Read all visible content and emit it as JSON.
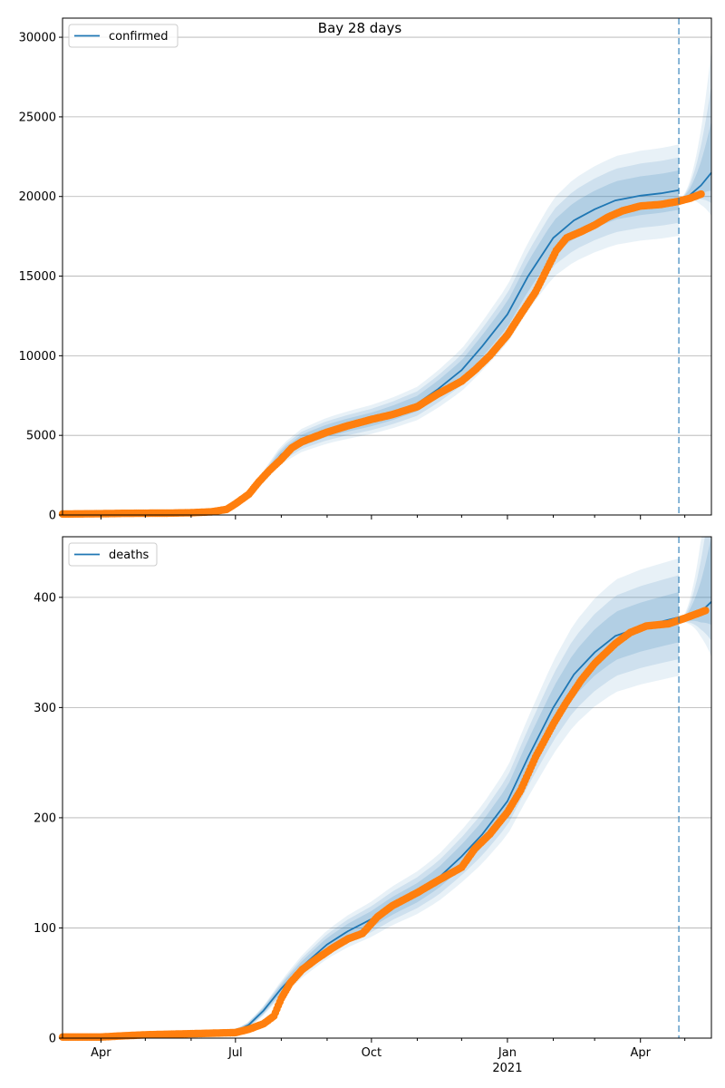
{
  "title": "Bay 28 days",
  "chart_data": [
    {
      "type": "line",
      "x_type": "date",
      "xlim": [
        "2020-03-06",
        "2021-05-19"
      ],
      "ylim": [
        0,
        31200
      ],
      "yticks": [
        0,
        5000,
        10000,
        15000,
        20000,
        25000,
        30000
      ],
      "grid": "y",
      "legend_position": "top-left",
      "legend": "confirmed",
      "forecast_start": "2021-04-27",
      "model": {
        "name": "confirmed",
        "points": [
          [
            "2020-03-06",
            60
          ],
          [
            "2020-06-01",
            110
          ],
          [
            "2020-06-25",
            300
          ],
          [
            "2020-07-01",
            650
          ],
          [
            "2020-07-10",
            1300
          ],
          [
            "2020-07-20",
            2400
          ],
          [
            "2020-08-01",
            3800
          ],
          [
            "2020-08-15",
            4700
          ],
          [
            "2020-09-01",
            5300
          ],
          [
            "2020-09-15",
            5650
          ],
          [
            "2020-10-01",
            6000
          ],
          [
            "2020-10-15",
            6400
          ],
          [
            "2020-11-01",
            7000
          ],
          [
            "2020-11-15",
            7900
          ],
          [
            "2020-12-01",
            9100
          ],
          [
            "2020-12-15",
            10600
          ],
          [
            "2021-01-01",
            12600
          ],
          [
            "2021-01-15",
            15000
          ],
          [
            "2021-02-01",
            17400
          ],
          [
            "2021-02-15",
            18500
          ],
          [
            "2021-03-01",
            19200
          ],
          [
            "2021-03-15",
            19750
          ],
          [
            "2021-04-01",
            20050
          ],
          [
            "2021-04-15",
            20200
          ],
          [
            "2021-04-27",
            20400
          ]
        ]
      },
      "projection": [
        [
          "2021-04-27",
          19700
        ],
        [
          "2021-05-04",
          20050
        ],
        [
          "2021-05-12",
          20700
        ],
        [
          "2021-05-19",
          21500
        ]
      ],
      "observed": {
        "points": [
          [
            "2020-03-06",
            60
          ],
          [
            "2020-04-01",
            80
          ],
          [
            "2020-04-15",
            100
          ],
          [
            "2020-05-01",
            110
          ],
          [
            "2020-05-15",
            115
          ],
          [
            "2020-06-01",
            140
          ],
          [
            "2020-06-15",
            200
          ],
          [
            "2020-06-25",
            350
          ],
          [
            "2020-07-01",
            700
          ],
          [
            "2020-07-10",
            1300
          ],
          [
            "2020-07-17",
            2100
          ],
          [
            "2020-07-24",
            2800
          ],
          [
            "2020-08-01",
            3500
          ],
          [
            "2020-08-08",
            4200
          ],
          [
            "2020-08-15",
            4600
          ],
          [
            "2020-09-01",
            5200
          ],
          [
            "2020-09-15",
            5600
          ],
          [
            "2020-10-01",
            6000
          ],
          [
            "2020-10-15",
            6300
          ],
          [
            "2020-11-01",
            6800
          ],
          [
            "2020-11-15",
            7600
          ],
          [
            "2020-12-01",
            8400
          ],
          [
            "2020-12-10",
            9100
          ],
          [
            "2020-12-20",
            10000
          ],
          [
            "2021-01-01",
            11300
          ],
          [
            "2021-01-10",
            12600
          ],
          [
            "2021-01-20",
            14000
          ],
          [
            "2021-01-27",
            15300
          ],
          [
            "2021-02-03",
            16600
          ],
          [
            "2021-02-10",
            17400
          ],
          [
            "2021-02-20",
            17800
          ],
          [
            "2021-03-01",
            18200
          ],
          [
            "2021-03-10",
            18700
          ],
          [
            "2021-03-20",
            19100
          ],
          [
            "2021-04-01",
            19400
          ],
          [
            "2021-04-15",
            19500
          ],
          [
            "2021-04-27",
            19700
          ],
          [
            "2021-05-05",
            19900
          ],
          [
            "2021-05-12",
            20150
          ]
        ]
      }
    },
    {
      "type": "line",
      "x_type": "date",
      "xlim": [
        "2020-03-06",
        "2021-05-19"
      ],
      "ylim": [
        0,
        455
      ],
      "yticks": [
        0,
        100,
        200,
        300,
        400
      ],
      "xticks": [
        {
          "date": "2020-04-01",
          "label": "Apr"
        },
        {
          "date": "2020-07-01",
          "label": "Jul"
        },
        {
          "date": "2020-10-01",
          "label": "Oct"
        },
        {
          "date": "2021-01-01",
          "label": "Jan",
          "year": "2021"
        },
        {
          "date": "2021-04-01",
          "label": "Apr"
        }
      ],
      "grid": "y",
      "legend_position": "top-left",
      "legend": "deaths",
      "forecast_start": "2021-04-27",
      "model": {
        "name": "deaths",
        "points": [
          [
            "2020-03-06",
            1
          ],
          [
            "2020-05-01",
            3
          ],
          [
            "2020-06-01",
            4
          ],
          [
            "2020-07-01",
            6
          ],
          [
            "2020-07-10",
            12
          ],
          [
            "2020-07-20",
            25
          ],
          [
            "2020-08-01",
            45
          ],
          [
            "2020-08-15",
            65
          ],
          [
            "2020-09-01",
            85
          ],
          [
            "2020-09-15",
            97
          ],
          [
            "2020-10-01",
            108
          ],
          [
            "2020-10-15",
            120
          ],
          [
            "2020-11-01",
            132
          ],
          [
            "2020-11-15",
            145
          ],
          [
            "2020-12-01",
            165
          ],
          [
            "2020-12-15",
            185
          ],
          [
            "2021-01-01",
            215
          ],
          [
            "2021-01-15",
            255
          ],
          [
            "2021-02-01",
            300
          ],
          [
            "2021-02-15",
            330
          ],
          [
            "2021-03-01",
            350
          ],
          [
            "2021-03-15",
            365
          ],
          [
            "2021-04-01",
            373
          ],
          [
            "2021-04-15",
            378
          ],
          [
            "2021-04-27",
            382
          ]
        ]
      },
      "projection": [
        [
          "2021-04-27",
          377
        ],
        [
          "2021-05-04",
          381
        ],
        [
          "2021-05-12",
          387
        ],
        [
          "2021-05-19",
          396
        ]
      ],
      "observed": {
        "points": [
          [
            "2020-03-06",
            1
          ],
          [
            "2020-04-01",
            1
          ],
          [
            "2020-04-15",
            2
          ],
          [
            "2020-05-01",
            3
          ],
          [
            "2020-06-01",
            4
          ],
          [
            "2020-07-01",
            5
          ],
          [
            "2020-07-10",
            8
          ],
          [
            "2020-07-20",
            13
          ],
          [
            "2020-07-27",
            20
          ],
          [
            "2020-08-01",
            36
          ],
          [
            "2020-08-07",
            50
          ],
          [
            "2020-08-15",
            62
          ],
          [
            "2020-08-25",
            72
          ],
          [
            "2020-09-05",
            82
          ],
          [
            "2020-09-15",
            90
          ],
          [
            "2020-09-25",
            95
          ],
          [
            "2020-10-05",
            110
          ],
          [
            "2020-10-15",
            120
          ],
          [
            "2020-11-01",
            132
          ],
          [
            "2020-11-15",
            143
          ],
          [
            "2020-12-01",
            155
          ],
          [
            "2020-12-10",
            172
          ],
          [
            "2020-12-20",
            185
          ],
          [
            "2021-01-01",
            205
          ],
          [
            "2021-01-10",
            225
          ],
          [
            "2021-01-20",
            255
          ],
          [
            "2021-02-01",
            285
          ],
          [
            "2021-02-10",
            305
          ],
          [
            "2021-02-20",
            325
          ],
          [
            "2021-03-01",
            340
          ],
          [
            "2021-03-15",
            358
          ],
          [
            "2021-03-25",
            368
          ],
          [
            "2021-04-05",
            374
          ],
          [
            "2021-04-20",
            376
          ],
          [
            "2021-05-01",
            381
          ],
          [
            "2021-05-15",
            388
          ]
        ]
      }
    }
  ]
}
